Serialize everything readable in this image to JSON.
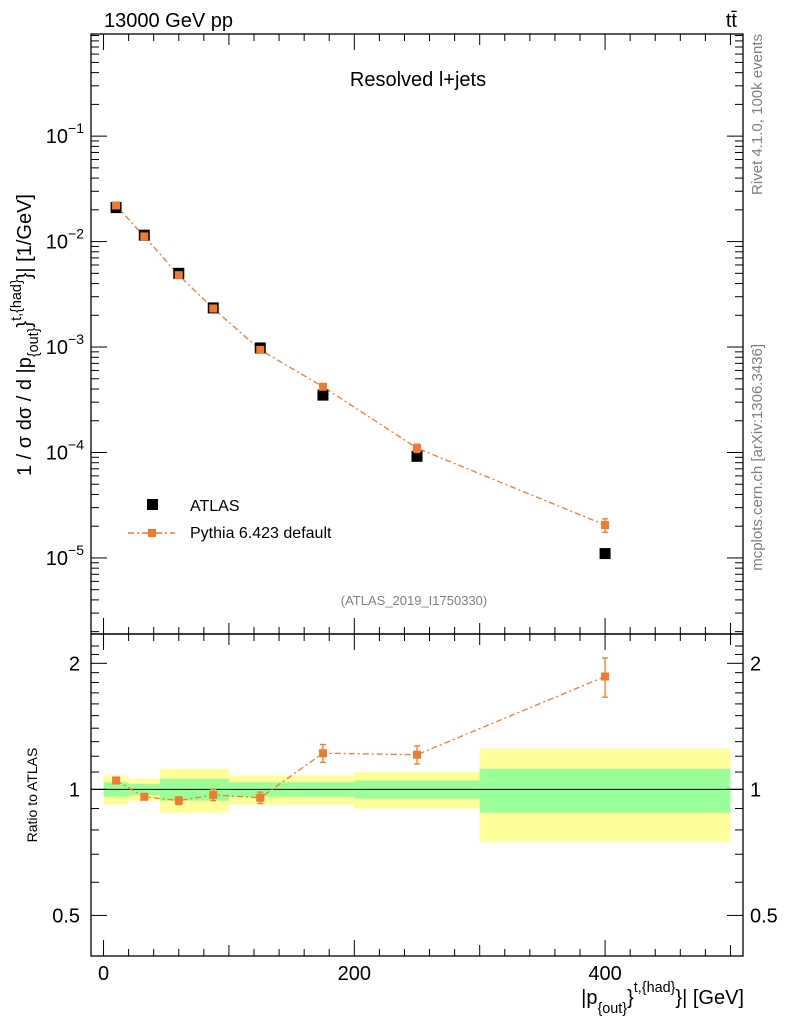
{
  "header": {
    "energy_label": "13000 GeV pp",
    "process_label": "tt̄",
    "plot_title": "Resolved l+jets",
    "analysis_id": "(ATLAS_2019_I1750330)"
  },
  "side_text": {
    "rivet": "Rivet 4.1.0,  100k events",
    "mcplots": "mcplots.cern.ch [arXiv:1306.3436]"
  },
  "axes": {
    "ylabel_main": "1 / σ dσ / d |p_{out}^{t,{had}}| [1/GeV]",
    "ylabel_ratio": "Ratio to ATLAS",
    "xlabel": "|p_{out}^{t,{had}}| [GeV]"
  },
  "legend": {
    "data_label": "ATLAS",
    "mc_label": "Pythia 6.423 default"
  },
  "colors": {
    "data": "#000000",
    "mc": "#f07a30",
    "band_inner": "#99ff99",
    "band_outer": "#ffff99",
    "side_text": "#808080"
  },
  "chart_data": {
    "type": "scatter",
    "x_edges": [
      0,
      20,
      45,
      75,
      100,
      150,
      200,
      300,
      500
    ],
    "x": [
      10,
      32.5,
      60,
      87.5,
      125,
      175,
      250,
      400
    ],
    "xlim": [
      -10,
      510
    ],
    "x_ticks": [
      0,
      200,
      400
    ],
    "main": {
      "yscale": "log",
      "ylim": [
        1.9e-06,
        0.93
      ],
      "y_ticks": [
        {
          "value": 1e-05,
          "base": "10",
          "exp": "−5"
        },
        {
          "value": 0.0001,
          "base": "10",
          "exp": "−4"
        },
        {
          "value": 0.001,
          "base": "10",
          "exp": "−3"
        },
        {
          "value": 0.01,
          "base": "10",
          "exp": "−2"
        },
        {
          "value": 0.1,
          "base": "10",
          "exp": "−1"
        }
      ],
      "series": [
        {
          "name": "ATLAS",
          "values": [
            0.021,
            0.0115,
            0.005,
            0.00235,
            0.00098,
            0.00035,
            9.2e-05,
            1.1e-05
          ]
        },
        {
          "name": "Pythia 6.423 default",
          "values": [
            0.022,
            0.0112,
            0.0048,
            0.00232,
            0.00094,
            0.00042,
            0.00011,
            2.05e-05
          ],
          "errors": [
            0,
            0,
            0,
            0,
            0,
            2e-05,
            1e-05,
            3e-06
          ]
        }
      ]
    },
    "ratio": {
      "yscale": "log",
      "ylim": [
        0.4,
        2.35
      ],
      "y_ticks": [
        0.5,
        1,
        2
      ],
      "band_inner": [
        0.04,
        0.03,
        0.06,
        0.06,
        0.04,
        0.04,
        0.05,
        0.12
      ],
      "band_outer": [
        0.08,
        0.06,
        0.12,
        0.12,
        0.08,
        0.08,
        0.1,
        0.25
      ],
      "mc_ratio": [
        1.05,
        0.96,
        0.94,
        0.97,
        0.955,
        1.22,
        1.21,
        1.86
      ],
      "mc_ratio_err": [
        0.01,
        0.01,
        0.02,
        0.03,
        0.03,
        0.06,
        0.06,
        0.2
      ]
    }
  }
}
